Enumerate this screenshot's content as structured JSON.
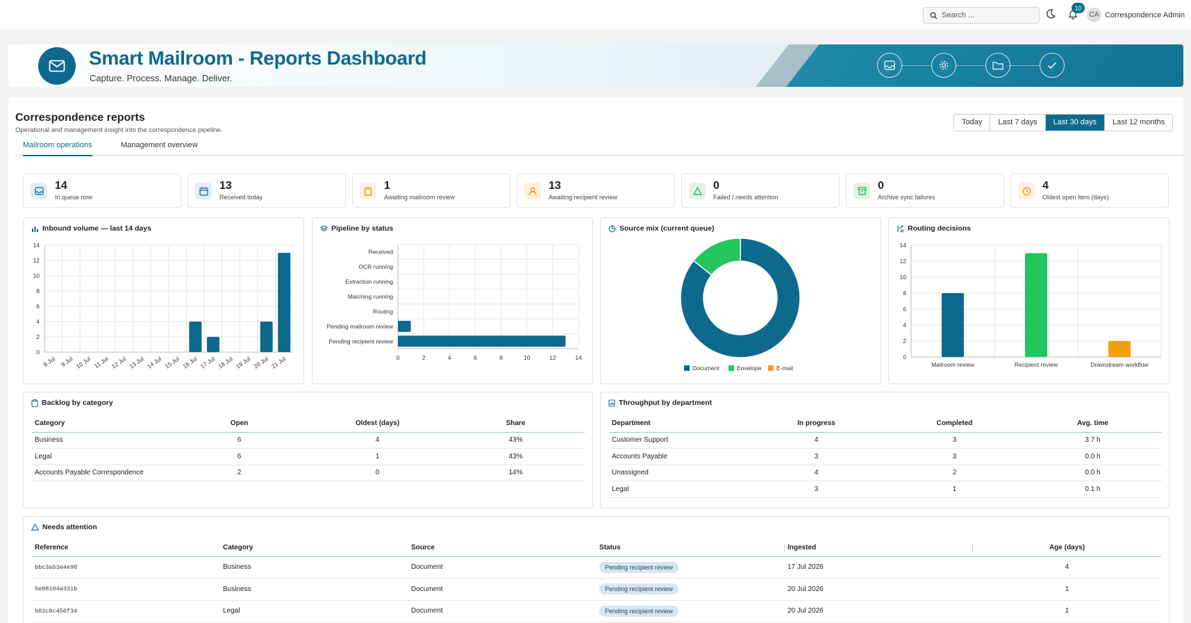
{
  "header": {
    "search_placeholder": "Search ...",
    "notifications_count": "10",
    "avatar_initials": "CA",
    "user_name": "Correspondence Admin"
  },
  "banner": {
    "title": "Smart Mailroom - Reports Dashboard",
    "subtitle": "Capture. Process. Manage. Deliver.",
    "steps": [
      "inbox-icon",
      "gear-icon",
      "folder-icon",
      "check-icon"
    ]
  },
  "page": {
    "title": "Correspondence reports",
    "subtitle": "Operational and management insight into the correspondence pipeline.",
    "ranges": [
      "Today",
      "Last 7 days",
      "Last 30 days",
      "Last 12 months"
    ],
    "active_range": "Last 30 days",
    "tabs": [
      "Mailroom operations",
      "Management overview"
    ],
    "active_tab": "Mailroom operations"
  },
  "kpis": [
    {
      "value": "14",
      "label": "In queue now",
      "icon": "inbox-icon",
      "color": "#0e6a8c"
    },
    {
      "value": "13",
      "label": "Received today",
      "icon": "calendar-icon",
      "color": "#0e6a8c"
    },
    {
      "value": "1",
      "label": "Awaiting mailroom review",
      "icon": "clipboard-icon",
      "color": "#e0911a"
    },
    {
      "value": "13",
      "label": "Awaiting recipient review",
      "icon": "user-icon",
      "color": "#e0911a"
    },
    {
      "value": "0",
      "label": "Failed / needs attention",
      "icon": "warning-icon",
      "color": "#22a850"
    },
    {
      "value": "0",
      "label": "Archive sync failures",
      "icon": "archive-icon",
      "color": "#22a850"
    },
    {
      "value": "4",
      "label": "Oldest open item (days)",
      "icon": "clock-icon",
      "color": "#e0911a"
    }
  ],
  "panels": {
    "inbound": "Inbound volume — last 14 days",
    "pipeline": "Pipeline by status",
    "source": "Source mix (current queue)",
    "routing": "Routing decisions",
    "backlog": "Backlog by category",
    "throughput": "Throughput by department",
    "attention": "Needs attention"
  },
  "chart_data": [
    {
      "type": "bar",
      "title": "Inbound volume — last 14 days",
      "categories": [
        "8 Jul",
        "9 Jul",
        "10 Jul",
        "11 Jul",
        "12 Jul",
        "13 Jul",
        "14 Jul",
        "15 Jul",
        "16 Jul",
        "17 Jul",
        "18 Jul",
        "19 Jul",
        "20 Jul",
        "21 Jul"
      ],
      "values": [
        0,
        0,
        0,
        0,
        0,
        0,
        0,
        0,
        4,
        2,
        0,
        0,
        4,
        13
      ],
      "ylim": [
        0,
        14
      ],
      "yticks": [
        0,
        2,
        4,
        6,
        8,
        10,
        12,
        14
      ],
      "color": "#0e6a8c",
      "grid": true
    },
    {
      "type": "bar",
      "orientation": "horizontal",
      "title": "Pipeline by status",
      "categories": [
        "Received",
        "OCR running",
        "Extraction running",
        "Matching running",
        "Routing",
        "Pending mailroom review",
        "Pending recipient review"
      ],
      "values": [
        0,
        0,
        0,
        0,
        0,
        1,
        13
      ],
      "xlim": [
        0,
        14
      ],
      "xticks": [
        0,
        2,
        4,
        6,
        8,
        10,
        12,
        14
      ],
      "color": "#0e6a8c",
      "grid": true
    },
    {
      "type": "pie",
      "donut": true,
      "title": "Source mix (current queue)",
      "labels": [
        "Document",
        "Envelope",
        "E-mail"
      ],
      "values": [
        12,
        2,
        0
      ],
      "colors": [
        "#0e6a8c",
        "#22c55e",
        "#f59e0b"
      ],
      "legend": "bottom"
    },
    {
      "type": "bar",
      "title": "Routing decisions",
      "categories": [
        "Mailroom review",
        "Recipient review",
        "Downstream workflow"
      ],
      "values": [
        8,
        13,
        2
      ],
      "colors": [
        "#0e6a8c",
        "#22c55e",
        "#f59e0b"
      ],
      "ylim": [
        0,
        14
      ],
      "yticks": [
        0,
        2,
        4,
        6,
        8,
        10,
        12,
        14
      ],
      "grid": true
    }
  ],
  "backlog": {
    "columns": [
      "Category",
      "Open",
      "Oldest (days)",
      "Share"
    ],
    "rows": [
      [
        "Business",
        "6",
        "4",
        "43%"
      ],
      [
        "Legal",
        "6",
        "1",
        "43%"
      ],
      [
        "Accounts Payable Correspondence",
        "2",
        "0",
        "14%"
      ]
    ]
  },
  "throughput": {
    "columns": [
      "Department",
      "In progress",
      "Completed",
      "Avg. time"
    ],
    "rows": [
      [
        "Customer Support",
        "4",
        "3",
        "3.7 h"
      ],
      [
        "Accounts Payable",
        "3",
        "3",
        "0.0 h"
      ],
      [
        "Unassigned",
        "4",
        "2",
        "0.0 h"
      ],
      [
        "Legal",
        "3",
        "1",
        "0.1 h"
      ]
    ]
  },
  "attention": {
    "columns": [
      "Reference",
      "Category",
      "Source",
      "Status",
      "Ingested",
      "Age (days)"
    ],
    "rows": [
      [
        "bbc3a53e4e90",
        "Business",
        "Document",
        "Pending recipient review",
        "17 Jul 2026",
        "4"
      ],
      [
        "5e88104a331b",
        "Business",
        "Document",
        "Pending recipient review",
        "20 Jul 2026",
        "1"
      ],
      [
        "b02c8c456f34",
        "Legal",
        "Document",
        "Pending recipient review",
        "20 Jul 2026",
        "1"
      ]
    ]
  }
}
